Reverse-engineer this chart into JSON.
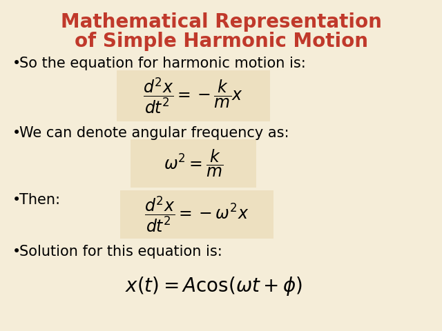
{
  "title_line1": "Mathematical Representation",
  "title_line2": "of Simple Harmonic Motion",
  "title_color": "#C0392B",
  "background_color": "#F5EDD8",
  "formula_box_color": "#EDE0C0",
  "text_color": "#000000",
  "bullet1": "So the equation for harmonic motion is:",
  "bullet2": "We can denote angular frequency as:",
  "bullet3": "Then:",
  "bullet4": "Solution for this equation is:",
  "eq1": "\\dfrac{d^2x}{dt^2} = -\\dfrac{k}{m}x",
  "eq2": "\\omega^2 = \\dfrac{k}{m}",
  "eq3": "\\dfrac{d^2x}{dt^2} = -\\omega^2 x",
  "eq4": "x(t) = A\\cos(\\omega t + \\phi)",
  "title_fontsize": 20,
  "bullet_fontsize": 15,
  "eq_fontsize": 17,
  "eq4_fontsize": 20
}
